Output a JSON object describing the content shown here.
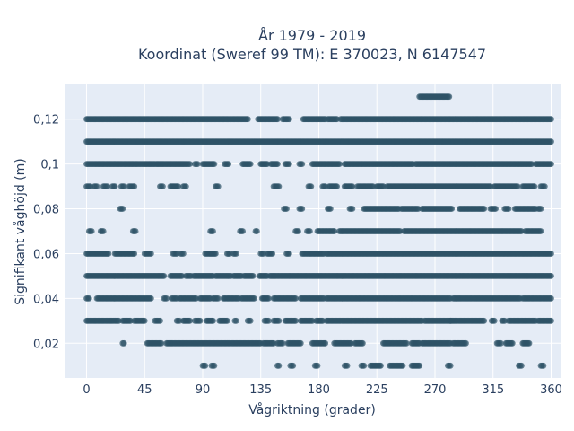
{
  "chart_data": {
    "type": "scatter",
    "title": [
      "År 1979 - 2019",
      "Koordinat (Sweref 99 TM): E 370023, N 6147547"
    ],
    "xlabel": "Vågriktning (grader)",
    "ylabel": "Signifikant våghöjd (m)",
    "xlim": [
      -17,
      368
    ],
    "ylim": [
      0.0045,
      0.1355
    ],
    "x_ticks": [
      0,
      45,
      90,
      135,
      180,
      225,
      270,
      315,
      360
    ],
    "x_tick_labels": [
      "0",
      "45",
      "90",
      "135",
      "180",
      "225",
      "270",
      "315",
      "360"
    ],
    "y_ticks": [
      0.02,
      0.04,
      0.06,
      0.08,
      0.1,
      0.12
    ],
    "y_tick_labels": [
      "0,02",
      "0,04",
      "0,06",
      "0,08",
      "0,1",
      "0,12"
    ],
    "grid": true,
    "marker_color": "#2e5266",
    "background_color": "#e5ecf6",
    "rows": [
      {
        "y": 0.01,
        "segments": [
          [
            90,
            92
          ],
          [
            97,
            99
          ],
          [
            148,
            149
          ],
          [
            158,
            160
          ],
          [
            177,
            179
          ],
          [
            200,
            202
          ],
          [
            213,
            215
          ],
          [
            220,
            228
          ],
          [
            235,
            245
          ],
          [
            252,
            258
          ],
          [
            280,
            282
          ],
          [
            335,
            337
          ],
          [
            352,
            354
          ]
        ]
      },
      {
        "y": 0.02,
        "segments": [
          [
            28,
            29
          ],
          [
            47,
            58
          ],
          [
            62,
            67
          ],
          [
            68,
            135
          ],
          [
            137,
            145
          ],
          [
            148,
            152
          ],
          [
            156,
            166
          ],
          [
            175,
            185
          ],
          [
            192,
            205
          ],
          [
            208,
            214
          ],
          [
            230,
            236
          ],
          [
            237,
            248
          ],
          [
            252,
            258
          ],
          [
            260,
            282
          ],
          [
            284,
            294
          ],
          [
            318,
            321
          ],
          [
            325,
            330
          ],
          [
            338,
            343
          ]
        ]
      },
      {
        "y": 0.03,
        "segments": [
          [
            0,
            25
          ],
          [
            28,
            34
          ],
          [
            37,
            45
          ],
          [
            53,
            57
          ],
          [
            70,
            72
          ],
          [
            75,
            80
          ],
          [
            84,
            88
          ],
          [
            93,
            98
          ],
          [
            103,
            109
          ],
          [
            115,
            116
          ],
          [
            125,
            127
          ],
          [
            138,
            141
          ],
          [
            145,
            149
          ],
          [
            154,
            162
          ],
          [
            166,
            175
          ],
          [
            178,
            183
          ],
          [
            186,
            260
          ],
          [
            262,
            282
          ],
          [
            287,
            282
          ],
          [
            288,
            308
          ],
          [
            314,
            316
          ],
          [
            322,
            324
          ],
          [
            327,
            348
          ],
          [
            350,
            360
          ]
        ]
      },
      {
        "y": 0.04,
        "segments": [
          [
            0,
            2
          ],
          [
            8,
            50
          ],
          [
            60,
            62
          ],
          [
            66,
            70
          ],
          [
            72,
            85
          ],
          [
            88,
            96
          ],
          [
            98,
            102
          ],
          [
            106,
            118
          ],
          [
            120,
            130
          ],
          [
            136,
            141
          ],
          [
            145,
            162
          ],
          [
            166,
            184
          ],
          [
            186,
            282
          ],
          [
            284,
            291
          ],
          [
            292,
            336
          ],
          [
            338,
            360
          ]
        ]
      },
      {
        "y": 0.05,
        "segments": [
          [
            0,
            60
          ],
          [
            65,
            74
          ],
          [
            77,
            81
          ],
          [
            83,
            98
          ],
          [
            100,
            112
          ],
          [
            114,
            120
          ],
          [
            122,
            129
          ],
          [
            134,
            140
          ],
          [
            142,
            147
          ],
          [
            148,
            360
          ]
        ]
      },
      {
        "y": 0.06,
        "segments": [
          [
            0,
            17
          ],
          [
            22,
            37
          ],
          [
            45,
            47
          ],
          [
            48,
            50
          ],
          [
            67,
            70
          ],
          [
            73,
            75
          ],
          [
            92,
            94
          ],
          [
            95,
            100
          ],
          [
            109,
            111
          ],
          [
            114,
            116
          ],
          [
            135,
            137
          ],
          [
            140,
            144
          ],
          [
            155,
            157
          ],
          [
            167,
            171
          ],
          [
            172,
            184
          ],
          [
            186,
            334
          ],
          [
            335,
            360
          ]
        ]
      },
      {
        "y": 0.07,
        "segments": [
          [
            2,
            4
          ],
          [
            11,
            13
          ],
          [
            36,
            38
          ],
          [
            96,
            98
          ],
          [
            119,
            121
          ],
          [
            131,
            132
          ],
          [
            162,
            164
          ],
          [
            171,
            173
          ],
          [
            179,
            192
          ],
          [
            196,
            243
          ],
          [
            246,
            337
          ],
          [
            340,
            352
          ]
        ]
      },
      {
        "y": 0.08,
        "segments": [
          [
            26,
            28
          ],
          [
            153,
            155
          ],
          [
            165,
            167
          ],
          [
            187,
            189
          ],
          [
            204,
            206
          ],
          [
            215,
            242
          ],
          [
            244,
            257
          ],
          [
            260,
            283
          ],
          [
            289,
            308
          ],
          [
            313,
            317
          ],
          [
            324,
            327
          ],
          [
            332,
            348
          ],
          [
            350,
            352
          ]
        ]
      },
      {
        "y": 0.09,
        "segments": [
          [
            0,
            3
          ],
          [
            6,
            8
          ],
          [
            13,
            16
          ],
          [
            20,
            22
          ],
          [
            27,
            29
          ],
          [
            33,
            37
          ],
          [
            57,
            59
          ],
          [
            65,
            71
          ],
          [
            75,
            77
          ],
          [
            100,
            102
          ],
          [
            145,
            149
          ],
          [
            172,
            174
          ],
          [
            183,
            185
          ],
          [
            188,
            194
          ],
          [
            200,
            206
          ],
          [
            210,
            222
          ],
          [
            225,
            230
          ],
          [
            233,
            313
          ],
          [
            316,
            334
          ],
          [
            338,
            347
          ],
          [
            352,
            355
          ]
        ]
      },
      {
        "y": 0.1,
        "segments": [
          [
            0,
            2
          ],
          [
            3,
            6
          ],
          [
            7,
            28
          ],
          [
            29,
            40
          ],
          [
            41,
            43
          ],
          [
            44,
            53
          ],
          [
            54,
            60
          ],
          [
            61,
            77
          ],
          [
            78,
            80
          ],
          [
            84,
            86
          ],
          [
            90,
            99
          ],
          [
            107,
            110
          ],
          [
            121,
            127
          ],
          [
            135,
            140
          ],
          [
            143,
            148
          ],
          [
            154,
            157
          ],
          [
            165,
            167
          ],
          [
            175,
            196
          ],
          [
            200,
            253
          ],
          [
            255,
            345
          ],
          [
            348,
            360
          ]
        ]
      },
      {
        "y": 0.11,
        "segments": [
          [
            0,
            360
          ]
        ]
      },
      {
        "y": 0.12,
        "segments": [
          [
            0,
            50
          ],
          [
            51,
            111
          ],
          [
            112,
            125
          ],
          [
            133,
            148
          ],
          [
            152,
            154
          ],
          [
            155,
            157
          ],
          [
            168,
            185
          ],
          [
            187,
            194
          ],
          [
            197,
            360
          ]
        ]
      },
      {
        "y": 0.13,
        "segments": [
          [
            258,
            281
          ]
        ]
      }
    ]
  }
}
